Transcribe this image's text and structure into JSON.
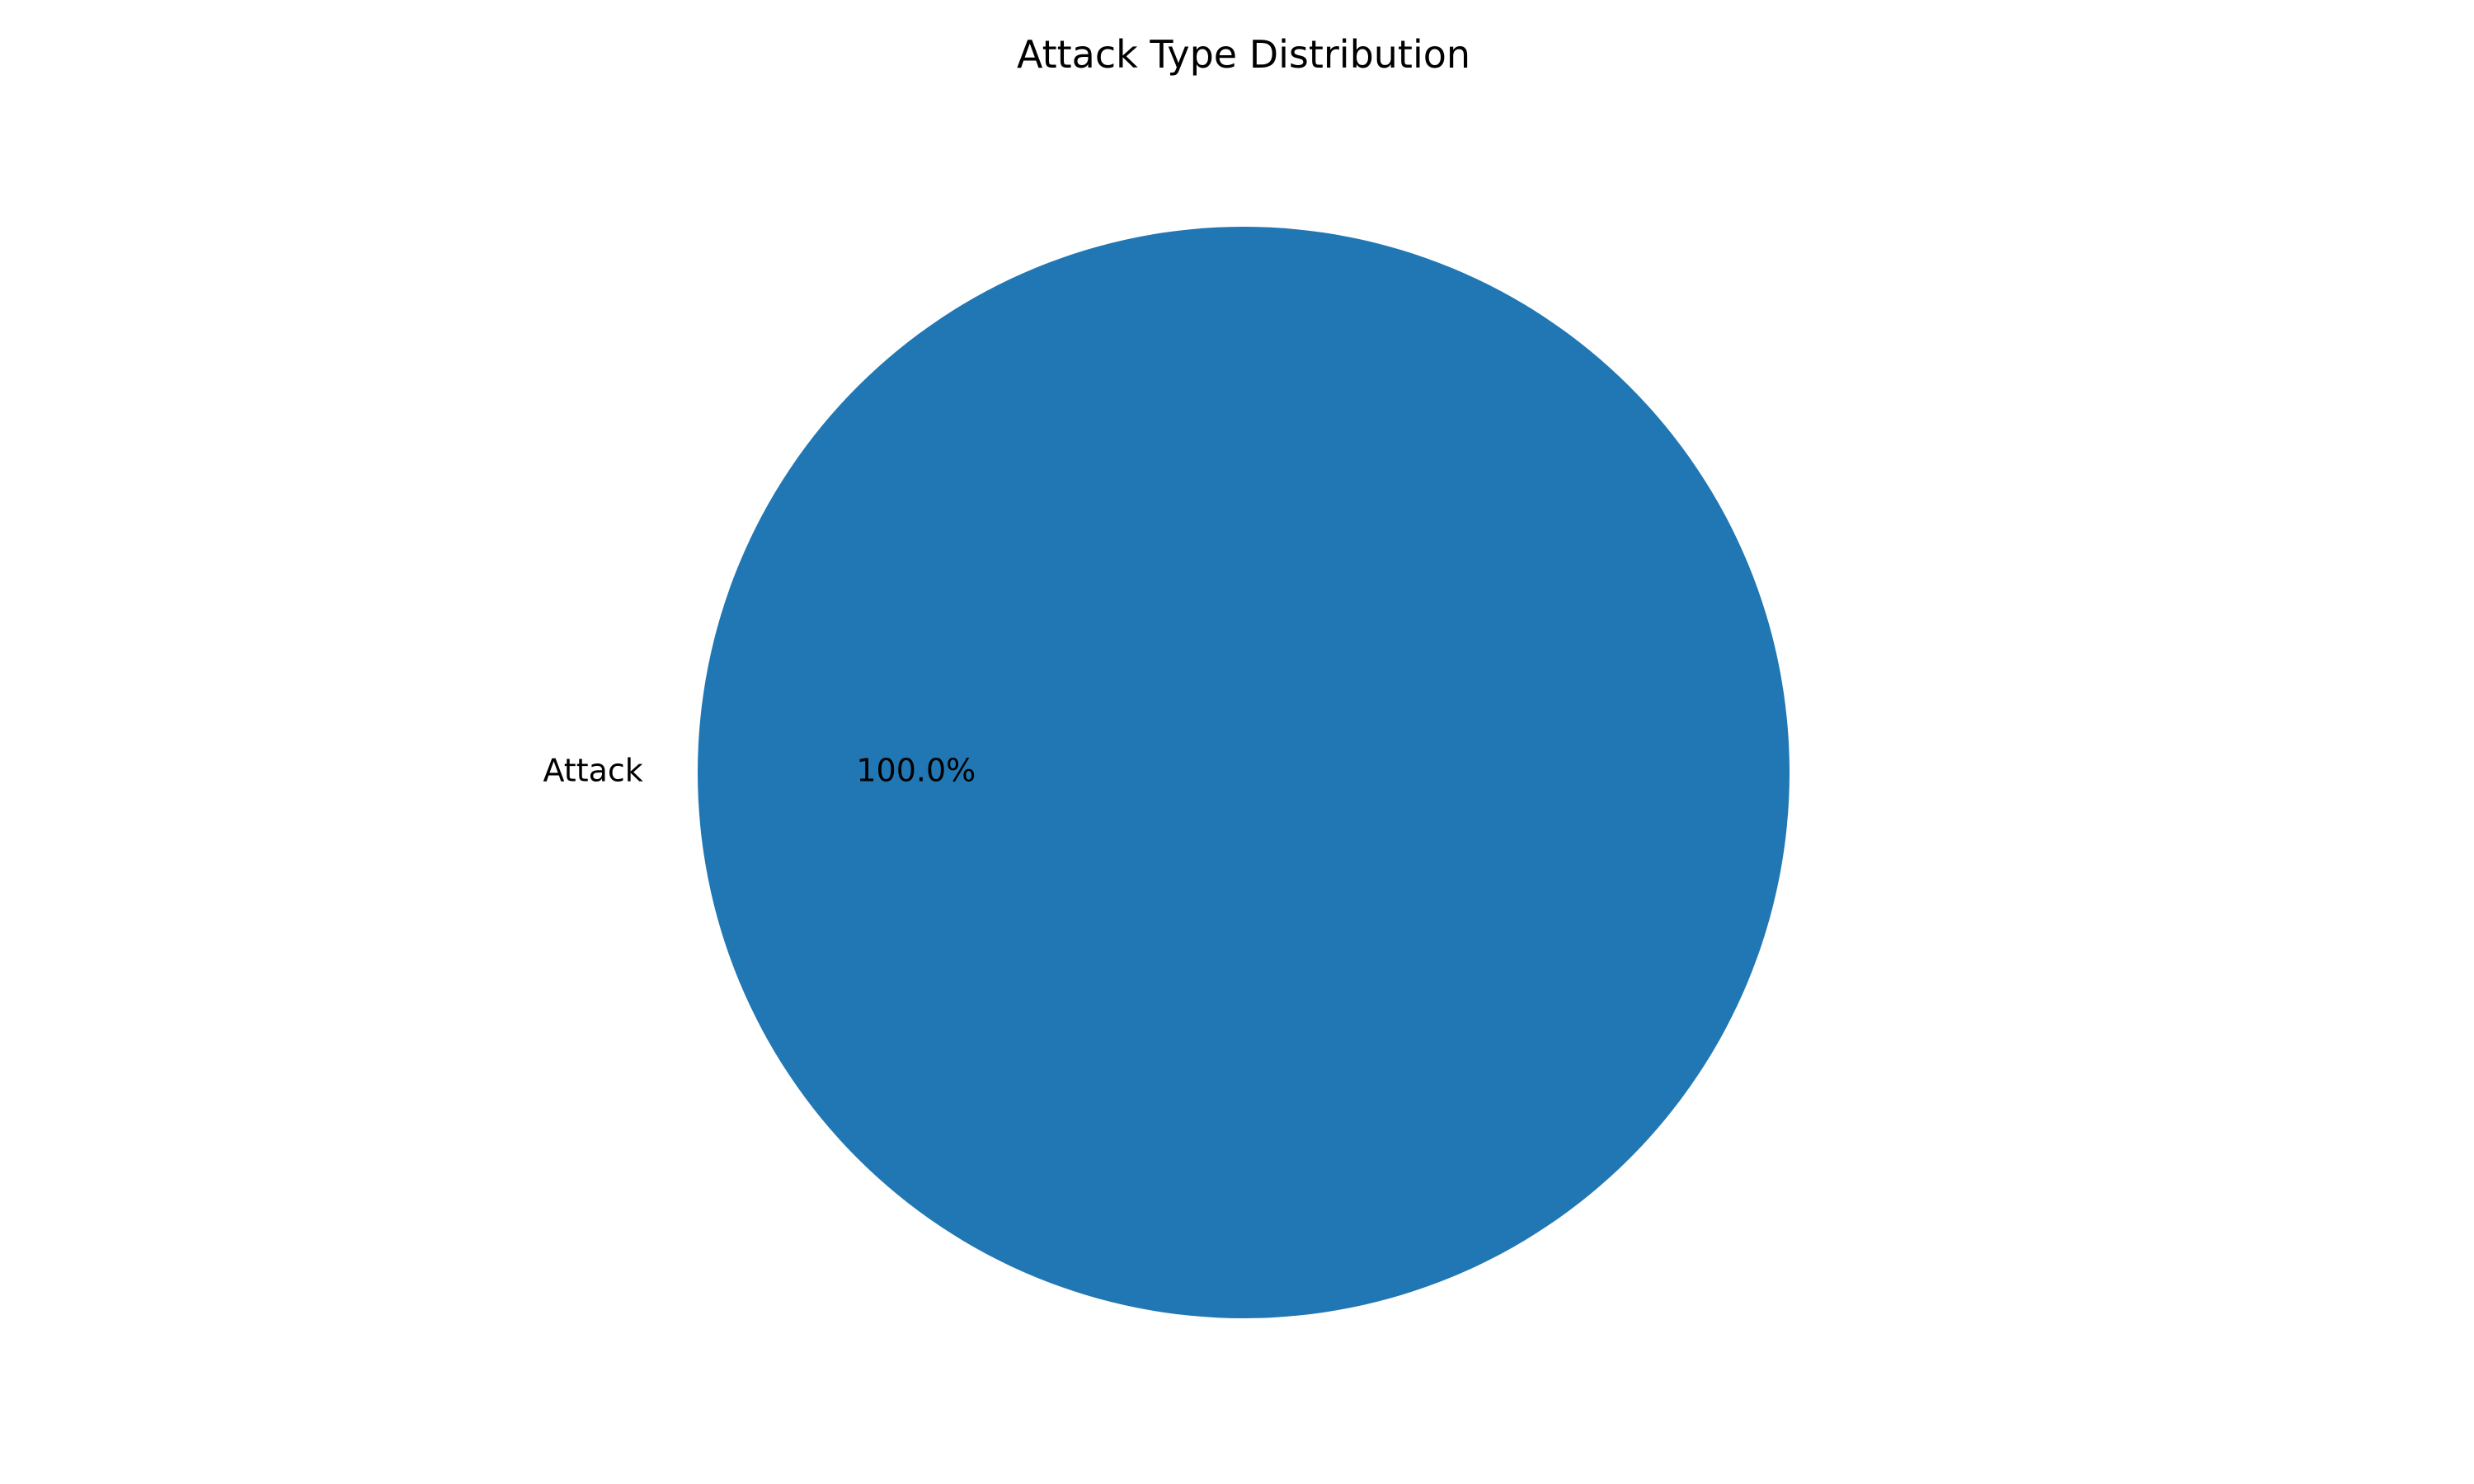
{
  "chart_data": {
    "type": "pie",
    "title": "Attack Type Distribution",
    "labels": [
      "Attack"
    ],
    "values": [
      100.0
    ],
    "percent_labels": [
      "100.0%"
    ],
    "colors": [
      "#2077b4"
    ],
    "autopct_format": "%.1f%%",
    "start_angle_deg": 0,
    "legend": "none"
  }
}
